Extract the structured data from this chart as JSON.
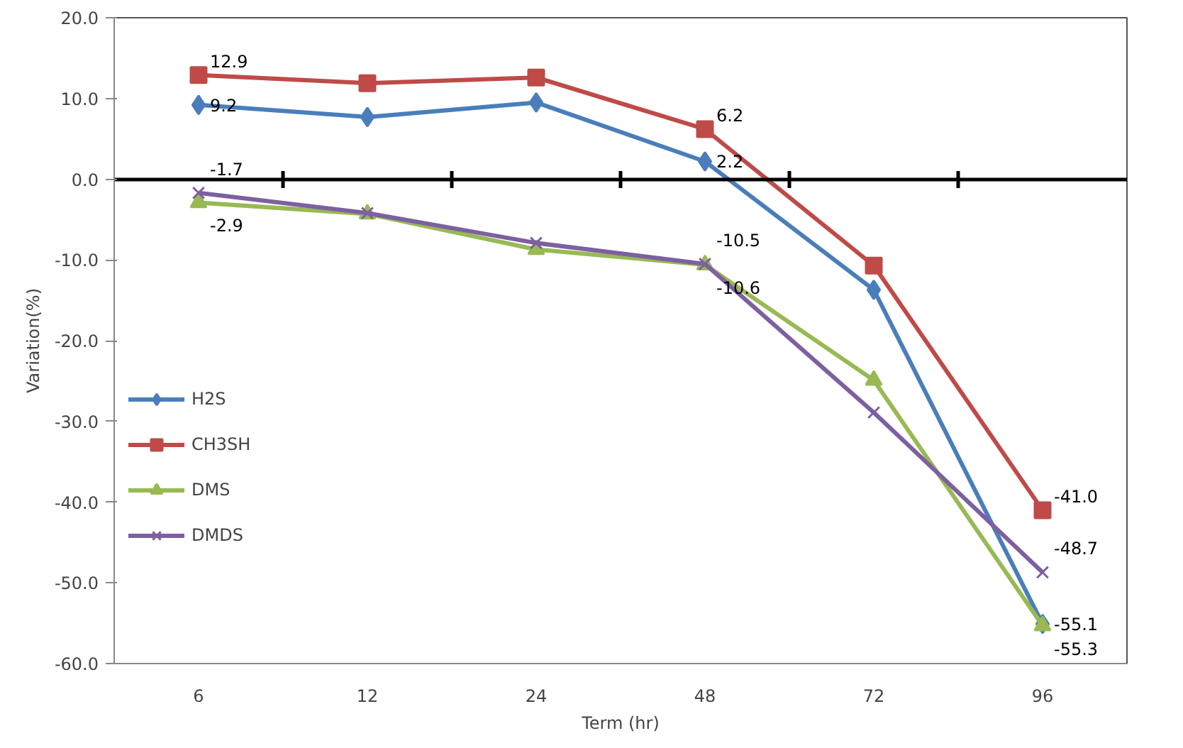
{
  "chart_data": {
    "type": "line",
    "xlabel": "Term (hr)",
    "ylabel": "Variation(%)",
    "categories": [
      "6",
      "12",
      "24",
      "48",
      "72",
      "96"
    ],
    "ylim": [
      -60,
      20
    ],
    "yticks": [
      {
        "value": -60,
        "label": "-60.0"
      },
      {
        "value": -50,
        "label": "-50.0"
      },
      {
        "value": -40,
        "label": "-40.0"
      },
      {
        "value": -30,
        "label": "-30.0"
      },
      {
        "value": -20,
        "label": "-20.0"
      },
      {
        "value": -10,
        "label": "-10.0"
      },
      {
        "value": 0,
        "label": "0.0"
      },
      {
        "value": 10,
        "label": "10.0"
      },
      {
        "value": 20,
        "label": "20.0"
      }
    ],
    "legend": "left",
    "line_style": "solid",
    "series": [
      {
        "name": "H2S",
        "color": "#4a7ebb",
        "marker": "diamond",
        "values": [
          9.2,
          7.7,
          9.5,
          2.2,
          -13.7,
          -55.1
        ],
        "value_labels": [
          "9.2",
          null,
          null,
          "2.2",
          null,
          "-55.1"
        ]
      },
      {
        "name": "CH3SH",
        "color": "#be4b48",
        "marker": "square",
        "values": [
          12.9,
          11.9,
          12.6,
          6.2,
          -10.7,
          -41.0
        ],
        "value_labels": [
          "12.9",
          null,
          null,
          "6.2",
          null,
          "-41.0"
        ]
      },
      {
        "name": "DMS",
        "color": "#98b954",
        "marker": "triangle",
        "values": [
          -2.9,
          -4.3,
          -8.7,
          -10.6,
          -24.9,
          -55.3
        ],
        "value_labels": [
          "-2.9",
          null,
          null,
          "-10.6",
          null,
          "-55.3"
        ]
      },
      {
        "name": "DMDS",
        "color": "#7d60a0",
        "marker": "cross",
        "values": [
          -1.7,
          -4.2,
          -7.9,
          -10.5,
          -28.9,
          -48.7
        ],
        "value_labels": [
          "-1.7",
          null,
          null,
          "-10.5",
          null,
          "-48.7"
        ]
      }
    ]
  }
}
